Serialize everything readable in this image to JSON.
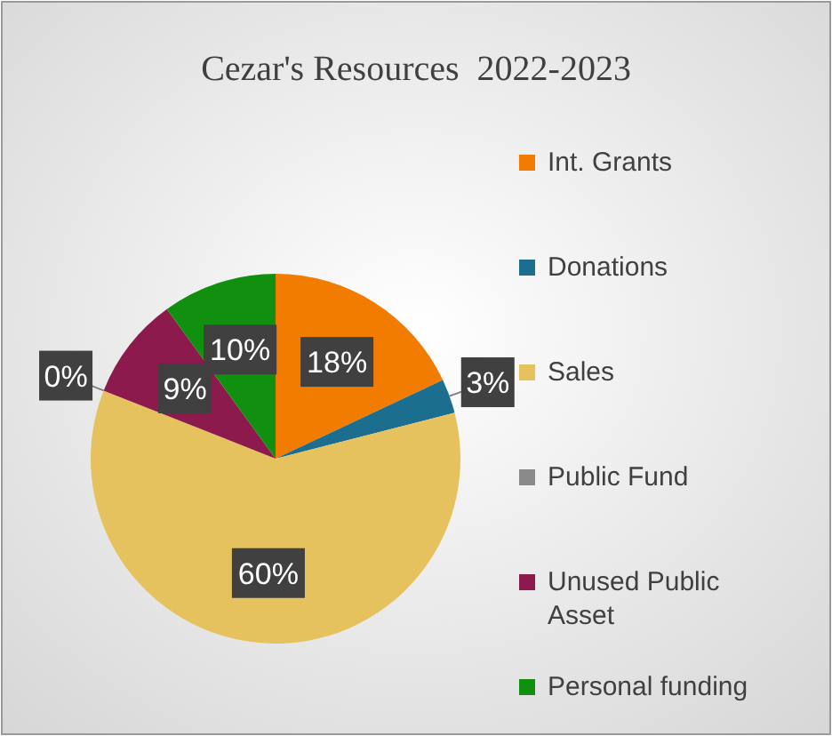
{
  "chart_data": {
    "type": "pie",
    "title": "Cezar's Resources  2022-2023",
    "categories": [
      "Int. Grants",
      "Donations",
      "Sales",
      "Public Fund",
      "Unused Public Asset",
      "Personal funding"
    ],
    "values": [
      18,
      3,
      60,
      0,
      9,
      10
    ],
    "colors": [
      "#f27c00",
      "#1b6e8e",
      "#e6c25e",
      "#8a8a8a",
      "#8c1a4c",
      "#11900f"
    ],
    "value_labels": [
      "18%",
      "3%",
      "60%",
      "0%",
      "9%",
      "10%"
    ],
    "legend": "right"
  }
}
